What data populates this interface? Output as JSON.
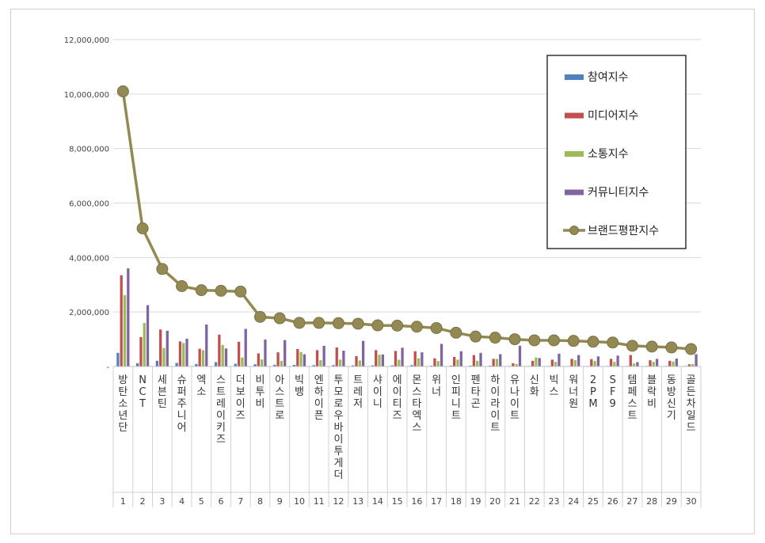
{
  "chart_data": {
    "type": "bar",
    "title": "",
    "xlabel": "",
    "ylabel": "",
    "ylim": [
      0,
      12000000
    ],
    "yticks": [
      0,
      2000000,
      4000000,
      6000000,
      8000000,
      10000000,
      12000000
    ],
    "ytick_labels": [
      "-",
      "2,000,000",
      "4,000,000",
      "6,000,000",
      "8,000,000",
      "10,000,000",
      "12,000,000"
    ],
    "grid": true,
    "legend_position": "top-right",
    "categories": [
      "방탄소년단",
      "NCT",
      "세븐틴",
      "슈퍼주니어",
      "엑소",
      "스트레이키즈",
      "더보이즈",
      "비투비",
      "아스트로",
      "빅뱅",
      "엔하이픈",
      "투모로우바이투게더",
      "트레저",
      "샤이니",
      "에이티즈",
      "몬스타엑스",
      "위너",
      "인피니트",
      "펜타곤",
      "하이라이트",
      "유나이트",
      "신화",
      "빅스",
      "워너원",
      "2PM",
      "SF9",
      "템페스트",
      "블락비",
      "동방신기",
      "골든차일드"
    ],
    "ranks": [
      "1",
      "2",
      "3",
      "4",
      "5",
      "6",
      "7",
      "8",
      "9",
      "10",
      "11",
      "12",
      "13",
      "14",
      "15",
      "16",
      "17",
      "18",
      "19",
      "20",
      "21",
      "22",
      "23",
      "24",
      "25",
      "26",
      "27",
      "28",
      "29",
      "30"
    ],
    "series": [
      {
        "name": "참여지수",
        "kind": "bar",
        "color": "#4f81bd",
        "values": [
          500000,
          120000,
          210000,
          130000,
          90000,
          160000,
          100000,
          80000,
          60000,
          60000,
          50000,
          50000,
          40000,
          40000,
          40000,
          50000,
          30000,
          30000,
          30000,
          30000,
          20000,
          20000,
          20000,
          20000,
          20000,
          20000,
          20000,
          20000,
          20000,
          20000
        ]
      },
      {
        "name": "미디어지수",
        "kind": "bar",
        "color": "#c0504d",
        "values": [
          3350000,
          1080000,
          1360000,
          920000,
          650000,
          1170000,
          910000,
          480000,
          520000,
          640000,
          600000,
          700000,
          380000,
          600000,
          570000,
          560000,
          300000,
          350000,
          420000,
          280000,
          120000,
          210000,
          250000,
          280000,
          270000,
          280000,
          420000,
          230000,
          210000,
          80000
        ]
      },
      {
        "name": "소통지수",
        "kind": "bar",
        "color": "#9bbb59",
        "values": [
          2620000,
          1600000,
          680000,
          860000,
          600000,
          790000,
          330000,
          260000,
          210000,
          530000,
          230000,
          250000,
          220000,
          430000,
          250000,
          300000,
          200000,
          250000,
          210000,
          280000,
          90000,
          330000,
          170000,
          230000,
          200000,
          170000,
          110000,
          170000,
          180000,
          90000
        ]
      },
      {
        "name": "커뮤니티지수",
        "kind": "bar",
        "color": "#8064a2",
        "values": [
          3600000,
          2250000,
          1310000,
          1020000,
          1540000,
          660000,
          1380000,
          990000,
          970000,
          450000,
          760000,
          580000,
          940000,
          440000,
          690000,
          520000,
          830000,
          560000,
          500000,
          450000,
          760000,
          310000,
          470000,
          420000,
          370000,
          400000,
          160000,
          280000,
          290000,
          450000
        ]
      },
      {
        "name": "브랜드평판지수",
        "kind": "line",
        "color": "#938953",
        "values": [
          10100000,
          5070000,
          3580000,
          2950000,
          2800000,
          2780000,
          2750000,
          1820000,
          1770000,
          1600000,
          1600000,
          1590000,
          1570000,
          1510000,
          1500000,
          1460000,
          1410000,
          1240000,
          1100000,
          1060000,
          1000000,
          960000,
          960000,
          940000,
          910000,
          880000,
          760000,
          730000,
          700000,
          640000
        ]
      }
    ]
  }
}
